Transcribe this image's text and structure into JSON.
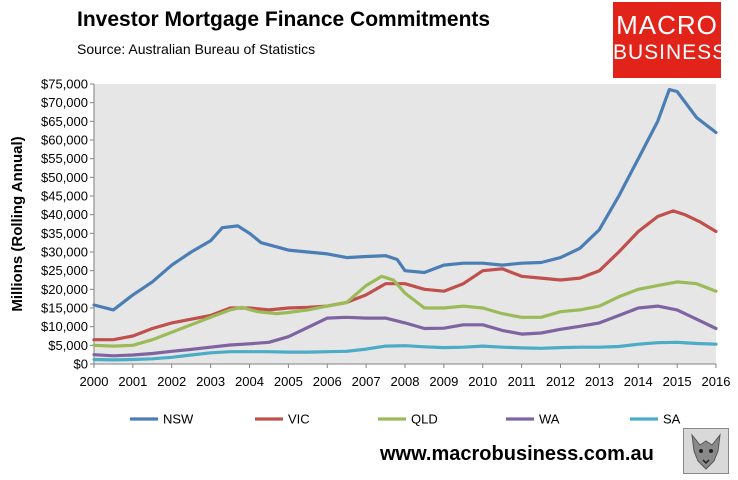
{
  "header": {
    "title": "Investor Mortgage Finance Commitments",
    "subtitle": "Source: Australian Bureau of Statistics"
  },
  "logo": {
    "line1": "MACRO",
    "line2": "BUSINESS"
  },
  "footer": {
    "website": "www.macrobusiness.com.au",
    "wolf_icon": "wolf-icon"
  },
  "colors": {
    "plot_bg": "#e6e6e6",
    "logo_bg": "#e2231a"
  },
  "chart_data": {
    "type": "line",
    "ylabel": "Millions (Rolling Annual)",
    "xlabel": "",
    "xlim": [
      2000,
      2016
    ],
    "ylim": [
      0,
      75000
    ],
    "yticks": [
      "$0",
      "$5,000",
      "$10,000",
      "$15,000",
      "$20,000",
      "$25,000",
      "$30,000",
      "$35,000",
      "$40,000",
      "$45,000",
      "$50,000",
      "$55,000",
      "$60,000",
      "$65,000",
      "$70,000",
      "$75,000"
    ],
    "xticks": [
      "2000",
      "2001",
      "2002",
      "2003",
      "2004",
      "2005",
      "2006",
      "2007",
      "2008",
      "2009",
      "2010",
      "2011",
      "2012",
      "2013",
      "2014",
      "2015",
      "2016"
    ],
    "grid": false,
    "legend": "bottom",
    "series": [
      {
        "name": "NSW",
        "color": "#4a7eb5",
        "x": [
          2000,
          2000.5,
          2001,
          2001.5,
          2002,
          2002.5,
          2003,
          2003.3,
          2003.7,
          2004,
          2004.3,
          2005,
          2005.5,
          2006,
          2006.5,
          2007,
          2007.5,
          2007.8,
          2008,
          2008.5,
          2009,
          2009.5,
          2010,
          2010.5,
          2011,
          2011.5,
          2012,
          2012.5,
          2013,
          2013.5,
          2014,
          2014.5,
          2014.8,
          2015,
          2015.5,
          2016
        ],
        "y": [
          15800,
          14500,
          18500,
          22000,
          26500,
          30000,
          33000,
          36500,
          37000,
          35000,
          32500,
          30500,
          30000,
          29500,
          28500,
          28800,
          29000,
          28000,
          25000,
          24500,
          26500,
          27000,
          27000,
          26500,
          27000,
          27200,
          28500,
          31000,
          36000,
          45000,
          55000,
          65000,
          73500,
          73000,
          66000,
          62000
        ]
      },
      {
        "name": "VIC",
        "color": "#c0504d",
        "x": [
          2000,
          2000.5,
          2001,
          2001.5,
          2002,
          2002.5,
          2003,
          2003.5,
          2004,
          2004.5,
          2005,
          2005.5,
          2006,
          2006.5,
          2007,
          2007.5,
          2008,
          2008.5,
          2009,
          2009.5,
          2010,
          2010.5,
          2011,
          2011.5,
          2012,
          2012.5,
          2013,
          2013.5,
          2014,
          2014.5,
          2014.9,
          2015.2,
          2015.6,
          2016
        ],
        "y": [
          6500,
          6500,
          7500,
          9500,
          11000,
          12000,
          13000,
          15000,
          15000,
          14500,
          15000,
          15200,
          15500,
          16500,
          18500,
          21500,
          21500,
          20000,
          19500,
          21500,
          25000,
          25500,
          23500,
          23000,
          22500,
          23000,
          25000,
          30000,
          35500,
          39500,
          41000,
          40000,
          38000,
          35500
        ]
      },
      {
        "name": "QLD",
        "color": "#9bbb59",
        "x": [
          2000,
          2000.5,
          2001,
          2001.5,
          2002,
          2002.5,
          2003,
          2003.5,
          2003.8,
          2004.2,
          2004.7,
          2005,
          2005.5,
          2006,
          2006.5,
          2007,
          2007.4,
          2007.7,
          2008,
          2008.5,
          2009,
          2009.5,
          2010,
          2010.5,
          2011,
          2011.5,
          2012,
          2012.5,
          2013,
          2013.5,
          2014,
          2014.5,
          2015,
          2015.5,
          2016
        ],
        "y": [
          5000,
          4800,
          5000,
          6500,
          8500,
          10500,
          12500,
          14500,
          15200,
          14000,
          13500,
          13800,
          14500,
          15500,
          16500,
          21000,
          23500,
          22500,
          19000,
          15000,
          15000,
          15500,
          15000,
          13500,
          12500,
          12500,
          14000,
          14500,
          15500,
          18000,
          20000,
          21000,
          22000,
          21500,
          19500
        ]
      },
      {
        "name": "WA",
        "color": "#8064a2",
        "x": [
          2000,
          2000.5,
          2001,
          2001.5,
          2002,
          2002.5,
          2003,
          2003.5,
          2004,
          2004.5,
          2005,
          2005.5,
          2006,
          2006.5,
          2007,
          2007.5,
          2008,
          2008.5,
          2009,
          2009.5,
          2010,
          2010.5,
          2011,
          2011.5,
          2012,
          2012.5,
          2013,
          2013.5,
          2014,
          2014.5,
          2015,
          2015.5,
          2016
        ],
        "y": [
          2500,
          2200,
          2400,
          2800,
          3400,
          3900,
          4500,
          5100,
          5400,
          5800,
          7300,
          9800,
          12300,
          12500,
          12300,
          12300,
          11000,
          9500,
          9600,
          10500,
          10500,
          9000,
          8000,
          8300,
          9300,
          10100,
          11000,
          13000,
          15000,
          15500,
          14500,
          12000,
          9500
        ]
      },
      {
        "name": "SA",
        "color": "#4bacc6",
        "x": [
          2000,
          2000.5,
          2001,
          2001.5,
          2002,
          2002.5,
          2003,
          2003.5,
          2004,
          2004.5,
          2005,
          2005.5,
          2006,
          2006.5,
          2007,
          2007.5,
          2008,
          2008.5,
          2009,
          2009.5,
          2010,
          2010.5,
          2011,
          2011.5,
          2012,
          2012.5,
          2013,
          2013.5,
          2014,
          2014.5,
          2015,
          2015.5,
          2016
        ],
        "y": [
          1200,
          1100,
          1200,
          1400,
          1800,
          2400,
          3000,
          3300,
          3300,
          3300,
          3200,
          3200,
          3300,
          3400,
          4000,
          4800,
          4900,
          4600,
          4400,
          4500,
          4800,
          4500,
          4300,
          4200,
          4400,
          4500,
          4500,
          4700,
          5300,
          5700,
          5800,
          5500,
          5300
        ]
      }
    ]
  }
}
